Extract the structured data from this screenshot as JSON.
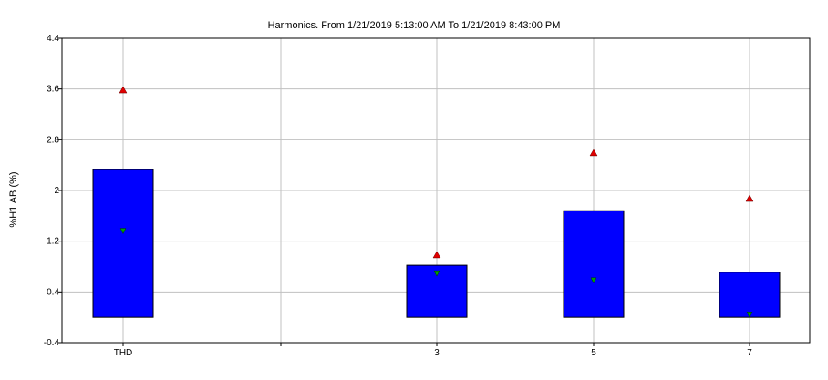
{
  "chart_data": {
    "type": "box",
    "title": "Harmonics. From 1/21/2019 5:13:00 AM To 1/21/2019 8:43:00 PM",
    "xlabel": "",
    "ylabel": "%H1 AB (%)",
    "ylim": [
      -0.4,
      4.4
    ],
    "y_tick_labels": [
      "-0.4",
      "0.4",
      "1.2",
      "2",
      "2.8",
      "3.6",
      "4.4"
    ],
    "x_tick_labels": [
      "THD",
      "",
      "3",
      "5",
      "7"
    ],
    "grid": true,
    "colors": {
      "box": "#0000ff",
      "max_marker": "#e00000",
      "mean_marker": "#00a000",
      "grid": "#c0c0c0"
    },
    "boxes": [
      {
        "category": "THD",
        "low": 0.0,
        "high": 2.33,
        "max": 3.58,
        "mean": 1.36
      },
      {
        "category": "3",
        "low": 0.0,
        "high": 0.82,
        "max": 0.98,
        "mean": 0.69
      },
      {
        "category": "5",
        "low": 0.0,
        "high": 1.68,
        "max": 2.59,
        "mean": 0.58
      },
      {
        "category": "7",
        "low": 0.0,
        "high": 0.71,
        "max": 1.87,
        "mean": 0.04
      }
    ]
  }
}
